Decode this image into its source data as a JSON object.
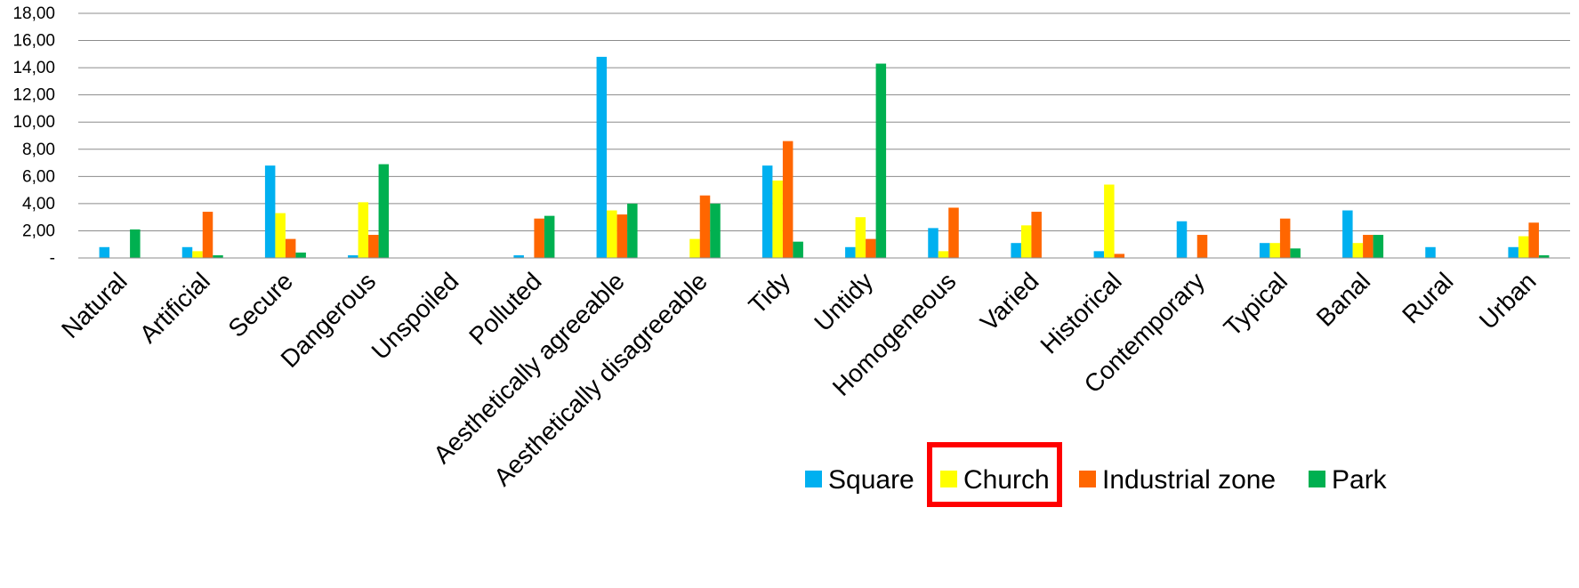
{
  "chart_data": {
    "type": "bar",
    "categories": [
      "Natural",
      "Artificial",
      "Secure",
      "Dangerous",
      "Unspoiled",
      "Polluted",
      "Aesthetically agreeable",
      "Aesthetically disagreeable",
      "Tidy",
      "Untidy",
      "Homogeneous",
      "Varied",
      "Historical",
      "Contemporary",
      "Typical",
      "Banal",
      "Rural",
      "Urban"
    ],
    "series": [
      {
        "name": "Square",
        "color": "#00B0F0",
        "values": [
          0.8,
          0.8,
          6.8,
          0.2,
          0,
          0.2,
          14.8,
          0,
          6.8,
          0.8,
          2.2,
          1.1,
          0.5,
          2.7,
          1.1,
          3.5,
          0.8,
          0.8
        ]
      },
      {
        "name": "Church",
        "color": "#FFFF00",
        "values": [
          0,
          0.5,
          3.3,
          4.1,
          0,
          0,
          3.5,
          1.4,
          5.7,
          3.0,
          0.5,
          2.4,
          5.4,
          0,
          1.1,
          1.1,
          0,
          1.6
        ]
      },
      {
        "name": "Industrial zone",
        "color": "#FF6600",
        "values": [
          0,
          3.4,
          1.4,
          1.7,
          0,
          2.9,
          3.2,
          4.6,
          8.6,
          1.4,
          3.7,
          3.4,
          0.3,
          1.7,
          2.9,
          1.7,
          0,
          2.6
        ]
      },
      {
        "name": "Park",
        "color": "#00B050",
        "values": [
          2.1,
          0.2,
          0.4,
          6.9,
          0,
          3.1,
          4.0,
          4.0,
          1.2,
          14.3,
          0,
          0,
          0,
          0,
          0.7,
          1.7,
          0,
          0.2
        ]
      }
    ],
    "ylim": [
      0,
      18
    ],
    "yticks": [
      "-",
      "2,00",
      "4,00",
      "6,00",
      "8,00",
      "10,00",
      "12,00",
      "14,00",
      "16,00",
      "18,00"
    ],
    "grid": true,
    "legend_position": "bottom-right",
    "highlighted_legend_entry": "Church",
    "highlight_color": "#FF0000"
  }
}
